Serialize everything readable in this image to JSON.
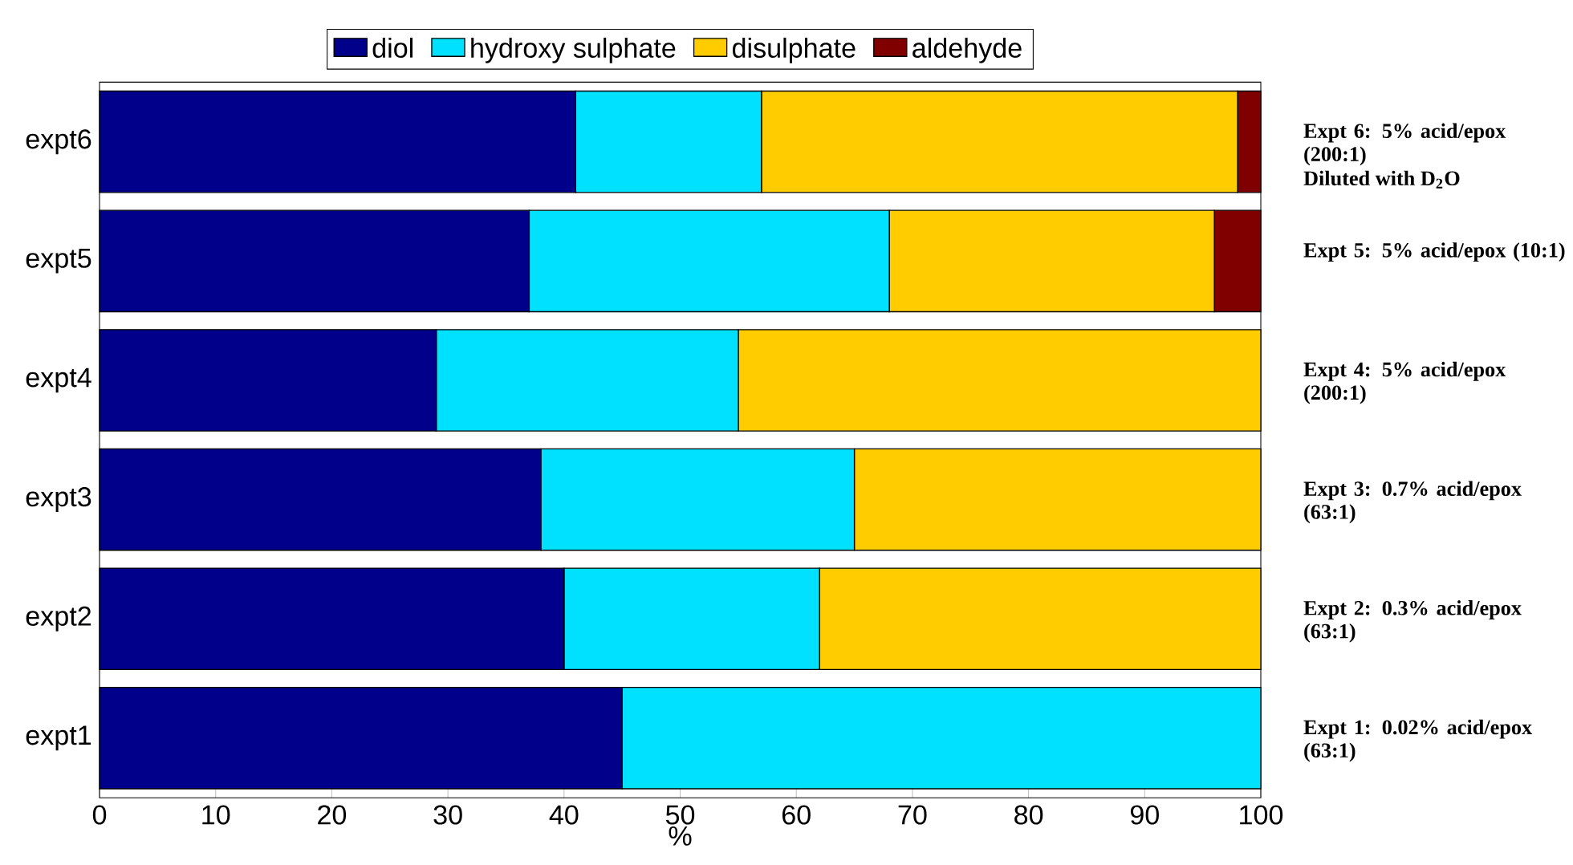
{
  "chart_data": {
    "type": "bar",
    "orientation": "horizontal",
    "stacked": true,
    "categories": [
      "expt6",
      "expt5",
      "expt4",
      "expt3",
      "expt2",
      "expt1"
    ],
    "series": [
      {
        "name": "diol",
        "color": "#00008b",
        "values": [
          41,
          37,
          29,
          38,
          40,
          45
        ]
      },
      {
        "name": "hydroxy sulphate",
        "color": "#00e0ff",
        "values": [
          16,
          31,
          26,
          27,
          22,
          55
        ]
      },
      {
        "name": "disulphate",
        "color": "#ffcc00",
        "values": [
          41,
          28,
          45,
          35,
          38,
          0
        ]
      },
      {
        "name": "aldehyde",
        "color": "#800000",
        "values": [
          2,
          4,
          0,
          0,
          0,
          0
        ]
      }
    ],
    "xlabel": "%",
    "xlim": [
      0,
      100
    ],
    "xticks": [
      0,
      10,
      20,
      30,
      40,
      50,
      60,
      70,
      80,
      90,
      100
    ],
    "legend": "top",
    "grid": false,
    "annotations": [
      "Expt 6: 5% acid/epox (200:1)",
      "Expt 5: 5% acid/epox (10:1)",
      "Expt 4: 5% acid/epox (200:1)",
      "Expt 3: 0.7% acid/epox (63:1)",
      "Expt 2: 0.3% acid/epox (63:1)",
      "Expt 1: 0.02% acid/epox (63:1)",
      "Diluted with D$_{2}$O"
    ]
  }
}
